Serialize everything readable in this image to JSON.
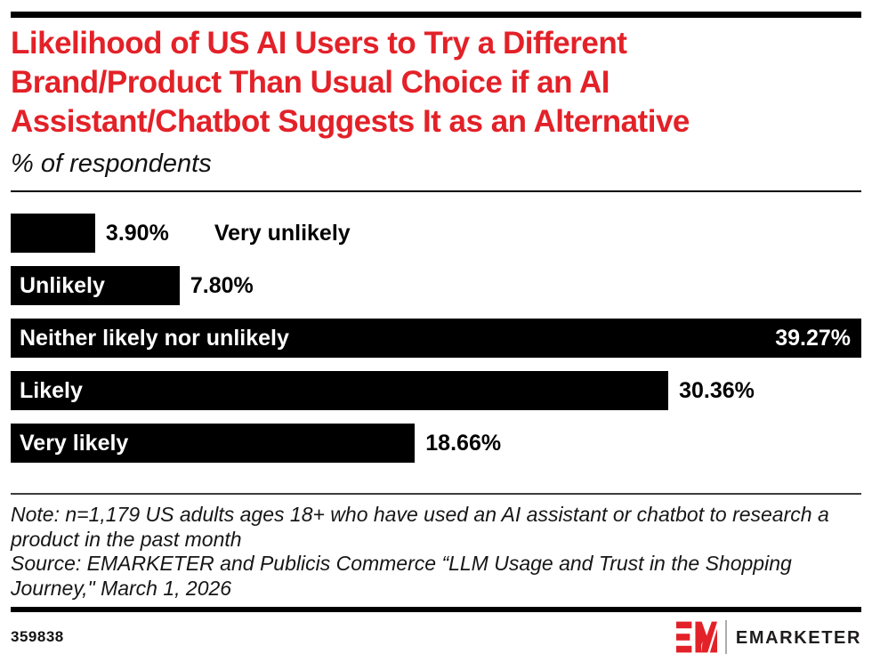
{
  "header": {
    "title": "Likelihood of US AI Users to Try a Different\nBrand/Product Than Usual Choice if an AI\nAssistant/Chatbot Suggests It as an Alternative",
    "subtitle": "% of respondents"
  },
  "chart_data": {
    "type": "bar",
    "orientation": "horizontal",
    "title": "Likelihood of US AI Users to Try a Different Brand/Product Than Usual Choice if an AI Assistant/Chatbot Suggests It as an Alternative",
    "subtitle": "% of respondents",
    "unit": "%",
    "categories": [
      "Very unlikely",
      "Unlikely",
      "Neither likely nor unlikely",
      "Likely",
      "Very likely"
    ],
    "values": [
      3.9,
      7.8,
      39.27,
      30.36,
      18.66
    ],
    "value_labels": [
      "3.90%",
      "7.80%",
      "39.27%",
      "30.36%",
      "18.66%"
    ],
    "xlim": [
      0,
      39.27
    ],
    "grid": false,
    "bar_color": "#000000",
    "bars": [
      {
        "label": "Very unlikely",
        "value": 3.9,
        "display": "3.90%",
        "label_placement": "outside",
        "value_placement": "outside"
      },
      {
        "label": "Unlikely",
        "value": 7.8,
        "display": "7.80%",
        "label_placement": "inside",
        "value_placement": "outside"
      },
      {
        "label": "Neither likely nor unlikely",
        "value": 39.27,
        "display": "39.27%",
        "label_placement": "inside",
        "value_placement": "inside"
      },
      {
        "label": "Likely",
        "value": 30.36,
        "display": "30.36%",
        "label_placement": "inside",
        "value_placement": "outside"
      },
      {
        "label": "Very likely",
        "value": 18.66,
        "display": "18.66%",
        "label_placement": "inside",
        "value_placement": "outside"
      }
    ]
  },
  "footer": {
    "note": "Note: n=1,179 US adults ages 18+ who have used an AI assistant or chatbot to research a product in the past month",
    "source": "Source: EMARKETER and Publicis Commerce “LLM Usage and Trust in the Shopping Journey,\" March 1, 2026",
    "chart_id": "359838"
  },
  "brand": {
    "logo_text": "EMARKETER",
    "red": "#e32128",
    "dark": "#1e1c1d"
  }
}
